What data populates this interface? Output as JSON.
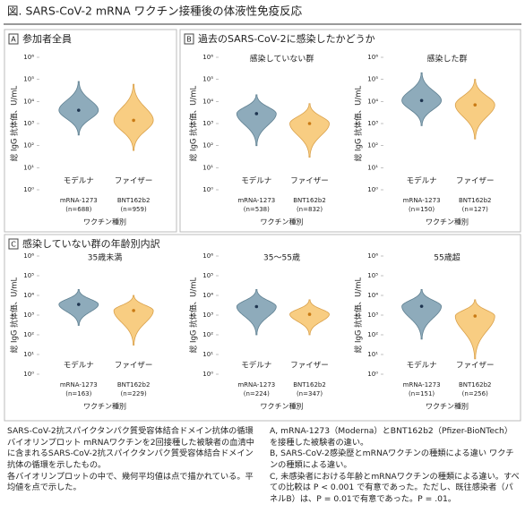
{
  "figure_title": "図.  SARS-CoV-2 mRNA ワクチン接種後の体液性免疫反応",
  "sections": [
    {
      "letter": "A",
      "title": "参加者全員"
    },
    {
      "letter": "B",
      "title": "過去のSARS-CoV-2に感染したかどうか"
    },
    {
      "letter": "C",
      "title": "感染していない群の年齢別内訳"
    }
  ],
  "chart_data": [
    {
      "type": "violin",
      "ylabel": "総 IgG 抗体価、U/mL",
      "xlabel": "ワクチン種別",
      "log_scale": true,
      "categories": [
        "モデルナ",
        "ファイザー"
      ],
      "category_details": [
        [
          "mRNA-1273",
          "(n=688)"
        ],
        [
          "BNT162b2",
          "(n=959)"
        ]
      ],
      "values": [
        4000,
        1400
      ],
      "ranges": [
        [
          300,
          80000
        ],
        [
          60,
          60000
        ]
      ],
      "colors": [
        "#8eabbb",
        "#f8cd82"
      ],
      "point_colors": [
        "#1f3550",
        "#c97a14"
      ],
      "ylim": [
        1,
        1000000
      ],
      "yticks": [
        {
          "value": 1,
          "label": "10⁰"
        },
        {
          "value": 10,
          "label": "10¹"
        },
        {
          "value": 100,
          "label": "10²"
        },
        {
          "value": 1000,
          "label": "10³"
        },
        {
          "value": 10000,
          "label": "10⁴"
        },
        {
          "value": 100000,
          "label": "10⁵"
        },
        {
          "value": 1000000,
          "label": "10⁶"
        }
      ]
    },
    {
      "type": "violin",
      "title": "感染していない群",
      "ylabel": "総 IgG 抗体価、U/mL",
      "xlabel": "ワクチン種別",
      "log_scale": true,
      "categories": [
        "モデルナ",
        "ファイザー"
      ],
      "category_details": [
        [
          "mRNA-1273",
          "(n=538)"
        ],
        [
          "BNT162b2",
          "(n=832)"
        ]
      ],
      "values": [
        2800,
        1000
      ],
      "ranges": [
        [
          100,
          20000
        ],
        [
          30,
          8000
        ]
      ],
      "colors": [
        "#8eabbb",
        "#f8cd82"
      ],
      "point_colors": [
        "#1f3550",
        "#c97a14"
      ],
      "ylim": [
        1,
        1000000
      ],
      "yticks": [
        {
          "value": 1,
          "label": "10⁰"
        },
        {
          "value": 10,
          "label": "10¹"
        },
        {
          "value": 100,
          "label": "10²"
        },
        {
          "value": 1000,
          "label": "10³"
        },
        {
          "value": 10000,
          "label": "10⁴"
        },
        {
          "value": 100000,
          "label": "10⁵"
        },
        {
          "value": 1000000,
          "label": "10⁶"
        }
      ]
    },
    {
      "type": "violin",
      "title": "感染した群",
      "ylabel": "総 IgG 抗体価、U/mL",
      "xlabel": "ワクチン種別",
      "log_scale": true,
      "categories": [
        "モデルナ",
        "ファイザー"
      ],
      "category_details": [
        [
          "mRNA-1273",
          "(n=150)"
        ],
        [
          "BNT162b2",
          "(n=127)"
        ]
      ],
      "values": [
        11000,
        7000
      ],
      "ranges": [
        [
          800,
          200000
        ],
        [
          200,
          100000
        ]
      ],
      "colors": [
        "#8eabbb",
        "#f8cd82"
      ],
      "point_colors": [
        "#1f3550",
        "#c97a14"
      ],
      "ylim": [
        1,
        1000000
      ],
      "yticks": [
        {
          "value": 1,
          "label": "10⁰"
        },
        {
          "value": 10,
          "label": "10¹"
        },
        {
          "value": 100,
          "label": "10²"
        },
        {
          "value": 1000,
          "label": "10³"
        },
        {
          "value": 10000,
          "label": "10⁴"
        },
        {
          "value": 100000,
          "label": "10⁵"
        },
        {
          "value": 1000000,
          "label": "10⁶"
        }
      ]
    },
    {
      "type": "violin",
      "title": "35歳未満",
      "ylabel": "総 IgG 抗体価、U/mL",
      "xlabel": "ワクチン種別",
      "log_scale": true,
      "categories": [
        "モデルナ",
        "ファイザー"
      ],
      "category_details": [
        [
          "mRNA-1273",
          "(n=163)"
        ],
        [
          "BNT162b2",
          "(n=229)"
        ]
      ],
      "values": [
        3500,
        1700
      ],
      "ranges": [
        [
          300,
          20000
        ],
        [
          30,
          10000
        ]
      ],
      "colors": [
        "#8eabbb",
        "#f8cd82"
      ],
      "point_colors": [
        "#1f3550",
        "#c97a14"
      ],
      "ylim": [
        1,
        1000000
      ],
      "yticks": [
        {
          "value": 1,
          "label": "10⁰"
        },
        {
          "value": 10,
          "label": "10¹"
        },
        {
          "value": 100,
          "label": "10²"
        },
        {
          "value": 1000,
          "label": "10³"
        },
        {
          "value": 10000,
          "label": "10⁴"
        },
        {
          "value": 100000,
          "label": "10⁵"
        },
        {
          "value": 1000000,
          "label": "10⁶"
        }
      ]
    },
    {
      "type": "violin",
      "title": "35～55歳",
      "ylabel": "総 IgG 抗体価、U/mL",
      "xlabel": "ワクチン種別",
      "log_scale": true,
      "categories": [
        "モデルナ",
        "ファイザー"
      ],
      "category_details": [
        [
          "mRNA-1273",
          "(n=224)"
        ],
        [
          "BNT162b2",
          "(n=347)"
        ]
      ],
      "values": [
        2700,
        1100
      ],
      "ranges": [
        [
          100,
          20000
        ],
        [
          100,
          6000
        ]
      ],
      "colors": [
        "#8eabbb",
        "#f8cd82"
      ],
      "point_colors": [
        "#1f3550",
        "#c97a14"
      ],
      "ylim": [
        1,
        1000000
      ],
      "yticks": [
        {
          "value": 1,
          "label": "10⁰"
        },
        {
          "value": 10,
          "label": "10¹"
        },
        {
          "value": 100,
          "label": "10²"
        },
        {
          "value": 1000,
          "label": "10³"
        },
        {
          "value": 10000,
          "label": "10⁴"
        },
        {
          "value": 100000,
          "label": "10⁵"
        },
        {
          "value": 1000000,
          "label": "10⁶"
        }
      ]
    },
    {
      "type": "violin",
      "title": "55歳超",
      "ylabel": "総 IgG 抗体価、U/mL",
      "xlabel": "ワクチン種別",
      "log_scale": true,
      "categories": [
        "モデルナ",
        "ファイザー"
      ],
      "category_details": [
        [
          "mRNA-1273",
          "(n=151)"
        ],
        [
          "BNT162b2",
          "(n=256)"
        ]
      ],
      "values": [
        2800,
        900
      ],
      "ranges": [
        [
          60,
          20000
        ],
        [
          6,
          6000
        ]
      ],
      "colors": [
        "#8eabbb",
        "#f8cd82"
      ],
      "point_colors": [
        "#1f3550",
        "#c97a14"
      ],
      "ylim": [
        1,
        1000000
      ],
      "yticks": [
        {
          "value": 1,
          "label": "10⁰"
        },
        {
          "value": 10,
          "label": "10¹"
        },
        {
          "value": 100,
          "label": "10²"
        },
        {
          "value": 1000,
          "label": "10³"
        },
        {
          "value": 10000,
          "label": "10⁴"
        },
        {
          "value": 100000,
          "label": "10⁵"
        },
        {
          "value": 1000000,
          "label": "10⁶"
        }
      ]
    }
  ],
  "caption": {
    "left": [
      "SARS-CoV-2抗スパイクタンパク質受容体結合ドメイン抗体の循環バイオリンプロット mRNAワクチンを2回接種した被験者の血清中に含まれるSARS-CoV-2抗スパイクタンパク質受容体結合ドメイン抗体の循環を示したもの。",
      "各バイオリンプロットの中で、幾何平均値は点で描かれている。平均値を点で示した。"
    ],
    "right": [
      "A, mRNA-1273（Moderna）とBNT162b2（Pfizer-BioNTech）を接種した被験者の違い。",
      "B, SARS-CoV-2感染歴とmRNAワクチンの種類による違い ワクチンの種類による違い。",
      "C, 未感染者における年齢とmRNAワクチンの種類による違い。すべての比較は P < 0.001 で有意であった。ただし、既往感染者（パネルB）は、P = 0.01で有意であった。P = .01。"
    ]
  }
}
